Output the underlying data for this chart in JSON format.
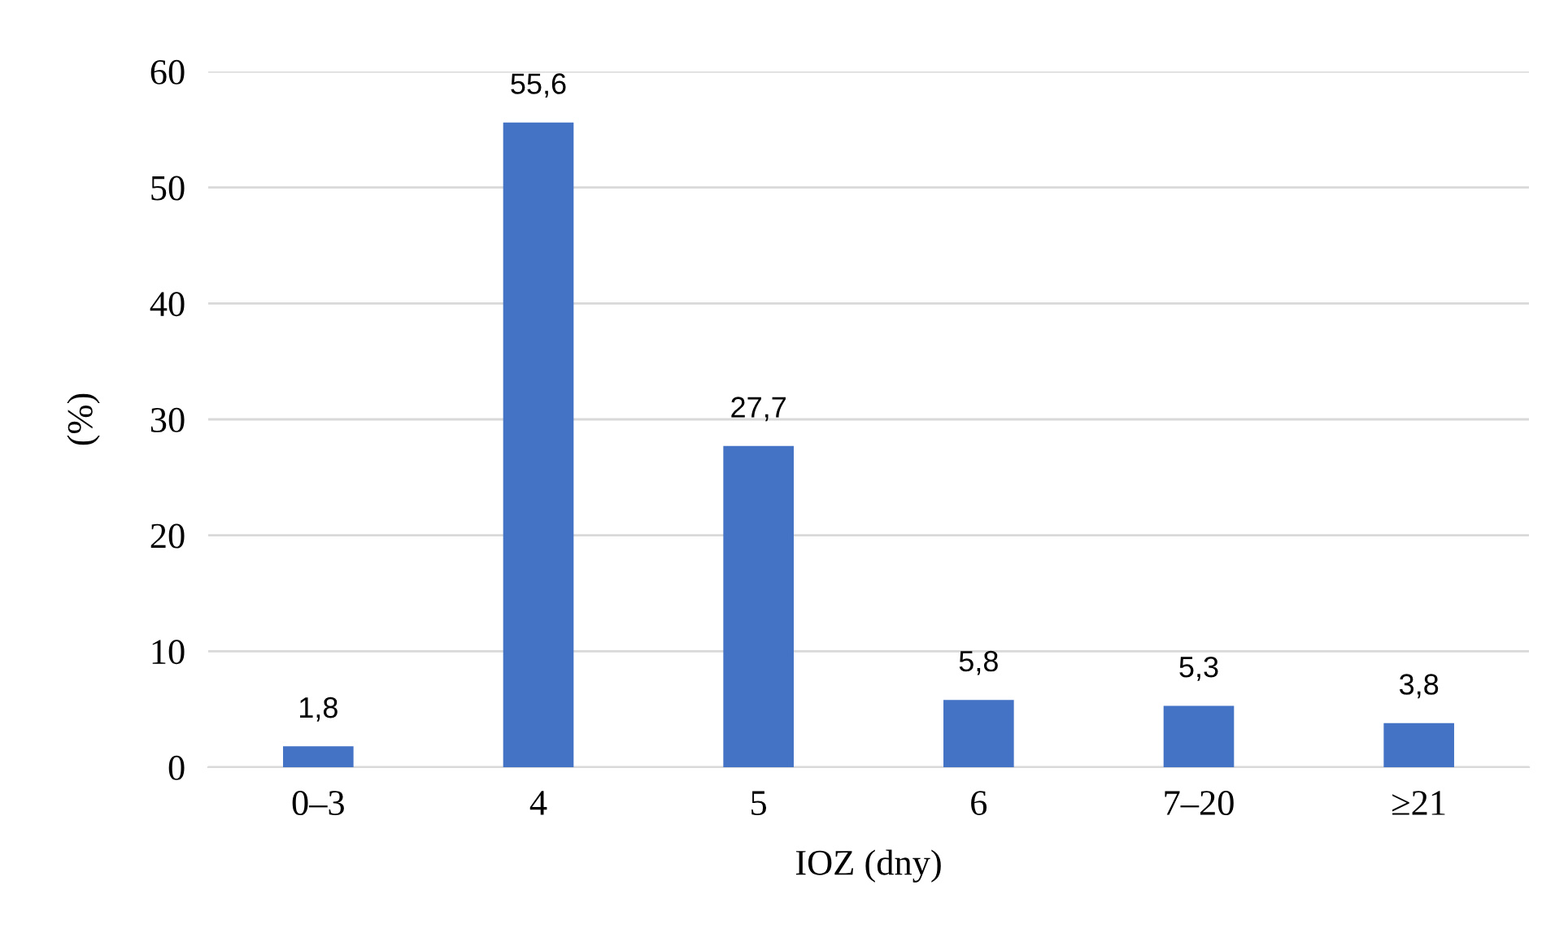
{
  "chart_data": {
    "type": "bar",
    "xlabel": "IOZ (dny)",
    "ylabel": "(%)",
    "categories": [
      "0–3",
      "4",
      "5",
      "6",
      "7–20",
      "≥21"
    ],
    "values": [
      1.8,
      55.6,
      27.7,
      5.8,
      5.3,
      3.8
    ],
    "value_labels": [
      "1,8",
      "55,6",
      "27,7",
      "5,8",
      "5,3",
      "3,8"
    ],
    "color": "#4472c4",
    "ylim": [
      0,
      60
    ],
    "yticks": [
      0,
      10,
      20,
      30,
      40,
      50,
      60
    ],
    "grid": "y",
    "legend": false
  }
}
